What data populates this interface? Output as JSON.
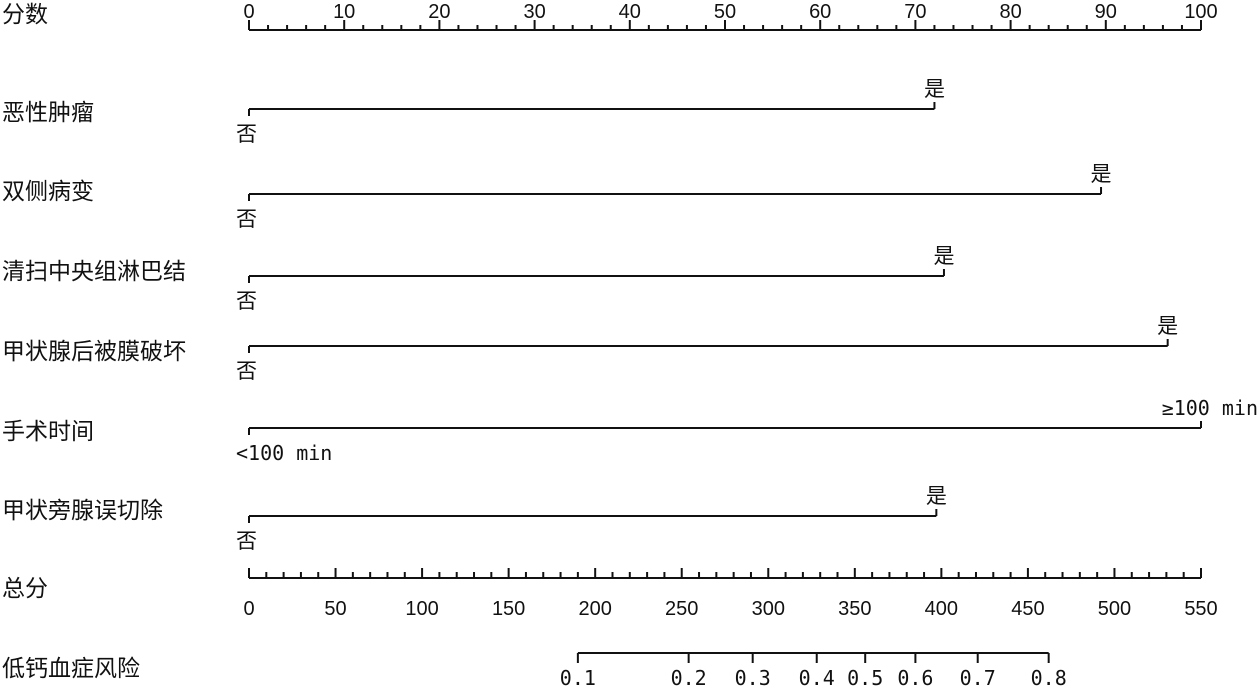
{
  "chart_data": {
    "type": "nomogram",
    "points_axis": {
      "label": "分数",
      "min": 0,
      "max": 100,
      "major_ticks": [
        0,
        10,
        20,
        30,
        40,
        50,
        60,
        70,
        80,
        90,
        100
      ],
      "minor_step": 2
    },
    "predictors": [
      {
        "name": "恶性肿瘤",
        "levels": [
          {
            "label": "否",
            "points": 0
          },
          {
            "label": "是",
            "points": 72
          }
        ]
      },
      {
        "name": "双侧病变",
        "levels": [
          {
            "label": "否",
            "points": 0
          },
          {
            "label": "是",
            "points": 89.5
          }
        ]
      },
      {
        "name": "清扫中央组淋巴结",
        "levels": [
          {
            "label": "否",
            "points": 0
          },
          {
            "label": "是",
            "points": 73
          }
        ]
      },
      {
        "name": "甲状腺后被膜破坏",
        "levels": [
          {
            "label": "否",
            "points": 0
          },
          {
            "label": "是",
            "points": 96.5
          }
        ]
      },
      {
        "name": "手术时间",
        "levels": [
          {
            "label": "<100 min",
            "points": 0
          },
          {
            "label": "≥100 min",
            "points": 100
          }
        ]
      },
      {
        "name": "甲状旁腺误切除",
        "levels": [
          {
            "label": "否",
            "points": 0
          },
          {
            "label": "是",
            "points": 72.2
          }
        ]
      }
    ],
    "total_points_axis": {
      "label": "总分",
      "min": 0,
      "max": 550,
      "major_ticks": [
        0,
        50,
        100,
        150,
        200,
        250,
        300,
        350,
        400,
        450,
        500,
        550
      ],
      "minor_step": 10
    },
    "risk_axis": {
      "label": "低钙血症风险",
      "ticks": [
        {
          "label": "0.1",
          "total_points": 190
        },
        {
          "label": "0.2",
          "total_points": 254
        },
        {
          "label": "0.3",
          "total_points": 291
        },
        {
          "label": "0.4",
          "total_points": 328
        },
        {
          "label": "0.5",
          "total_points": 356
        },
        {
          "label": "0.6",
          "total_points": 385
        },
        {
          "label": "0.7",
          "total_points": 421
        },
        {
          "label": "0.8",
          "total_points": 462
        }
      ]
    }
  }
}
